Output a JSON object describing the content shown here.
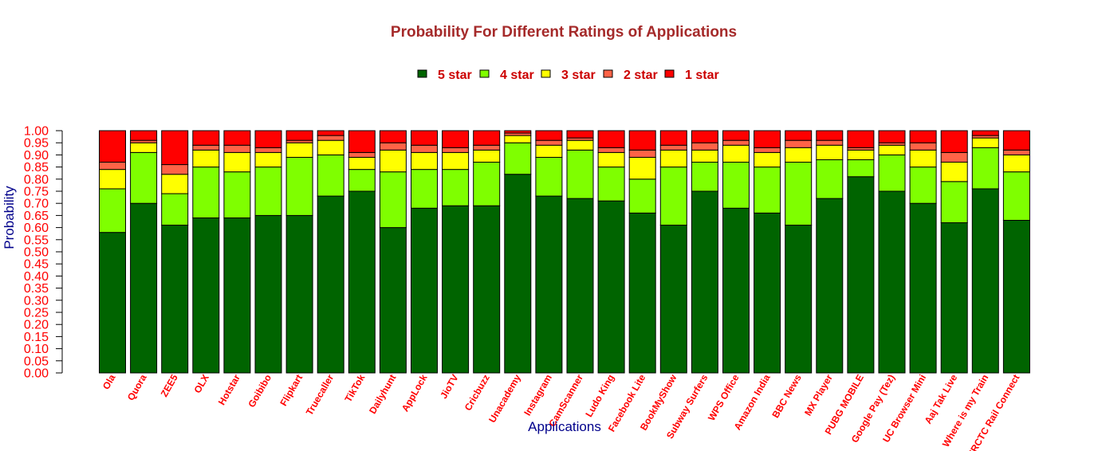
{
  "colors": {
    "title": "#a52a2a",
    "legend_text": "#cc0000",
    "tick_text": "#ff0000",
    "category_text": "#ff0000",
    "axis_title": "#00008b"
  },
  "chart_data": {
    "type": "bar",
    "stacked": true,
    "title": "Probability For Different Ratings of Applications",
    "xlabel": "Applications",
    "ylabel": "Probability",
    "ylim": [
      0,
      1
    ],
    "yticks": [
      "0.00",
      "0.05",
      "0.10",
      "0.15",
      "0.20",
      "0.25",
      "0.30",
      "0.35",
      "0.40",
      "0.45",
      "0.50",
      "0.55",
      "0.60",
      "0.65",
      "0.70",
      "0.75",
      "0.80",
      "0.85",
      "0.90",
      "0.95",
      "1.00"
    ],
    "grid": false,
    "legend_position": "top-center",
    "categories": [
      "Ola",
      "Quora",
      "ZEE5",
      "OLX",
      "Hotstar",
      "Goibibo",
      "Flipkart",
      "Truecaller",
      "TikTok",
      "Dailyhunt",
      "AppLock",
      "JioTV",
      "Cricbuzz",
      "Unacademy",
      "Instagram",
      "CamScanner",
      "Ludo King",
      "Facebook Lite",
      "BookMyShow",
      "Subway Surfers",
      "WPS Office",
      "Amazon India",
      "BBC News",
      "MX Player",
      "PUBG MOBILE",
      "Google Pay (Tez)",
      "UC Browser Mini",
      "Aaj Tak Live",
      "Where is my Train",
      "IRCTC Rail Connect"
    ],
    "series": [
      {
        "name": "5 star",
        "color": "#006400",
        "values": [
          0.58,
          0.7,
          0.61,
          0.64,
          0.64,
          0.65,
          0.65,
          0.73,
          0.75,
          0.6,
          0.68,
          0.69,
          0.69,
          0.82,
          0.73,
          0.72,
          0.71,
          0.66,
          0.61,
          0.75,
          0.68,
          0.66,
          0.61,
          0.72,
          0.81,
          0.75,
          0.7,
          0.62,
          0.76,
          0.63
        ]
      },
      {
        "name": "4 star",
        "color": "#7fff00",
        "values": [
          0.18,
          0.21,
          0.13,
          0.21,
          0.19,
          0.2,
          0.24,
          0.17,
          0.09,
          0.23,
          0.16,
          0.15,
          0.18,
          0.13,
          0.16,
          0.2,
          0.14,
          0.14,
          0.24,
          0.12,
          0.19,
          0.19,
          0.26,
          0.16,
          0.07,
          0.15,
          0.15,
          0.17,
          0.17,
          0.2
        ]
      },
      {
        "name": "3 star",
        "color": "#ffff00",
        "values": [
          0.08,
          0.04,
          0.08,
          0.07,
          0.08,
          0.06,
          0.06,
          0.06,
          0.05,
          0.09,
          0.07,
          0.07,
          0.05,
          0.03,
          0.05,
          0.04,
          0.06,
          0.09,
          0.07,
          0.05,
          0.07,
          0.06,
          0.06,
          0.06,
          0.04,
          0.04,
          0.07,
          0.08,
          0.04,
          0.07
        ]
      },
      {
        "name": "2 star",
        "color": "#ff6347",
        "values": [
          0.03,
          0.01,
          0.04,
          0.02,
          0.03,
          0.02,
          0.01,
          0.02,
          0.02,
          0.03,
          0.03,
          0.02,
          0.02,
          0.01,
          0.02,
          0.01,
          0.02,
          0.03,
          0.02,
          0.03,
          0.02,
          0.02,
          0.03,
          0.02,
          0.01,
          0.01,
          0.03,
          0.04,
          0.01,
          0.02
        ]
      },
      {
        "name": "1 star",
        "color": "#ff0000",
        "values": [
          0.13,
          0.04,
          0.14,
          0.06,
          0.06,
          0.07,
          0.04,
          0.02,
          0.09,
          0.05,
          0.06,
          0.07,
          0.06,
          0.01,
          0.04,
          0.03,
          0.07,
          0.08,
          0.06,
          0.05,
          0.04,
          0.07,
          0.04,
          0.04,
          0.07,
          0.05,
          0.05,
          0.09,
          0.02,
          0.08
        ]
      }
    ]
  }
}
